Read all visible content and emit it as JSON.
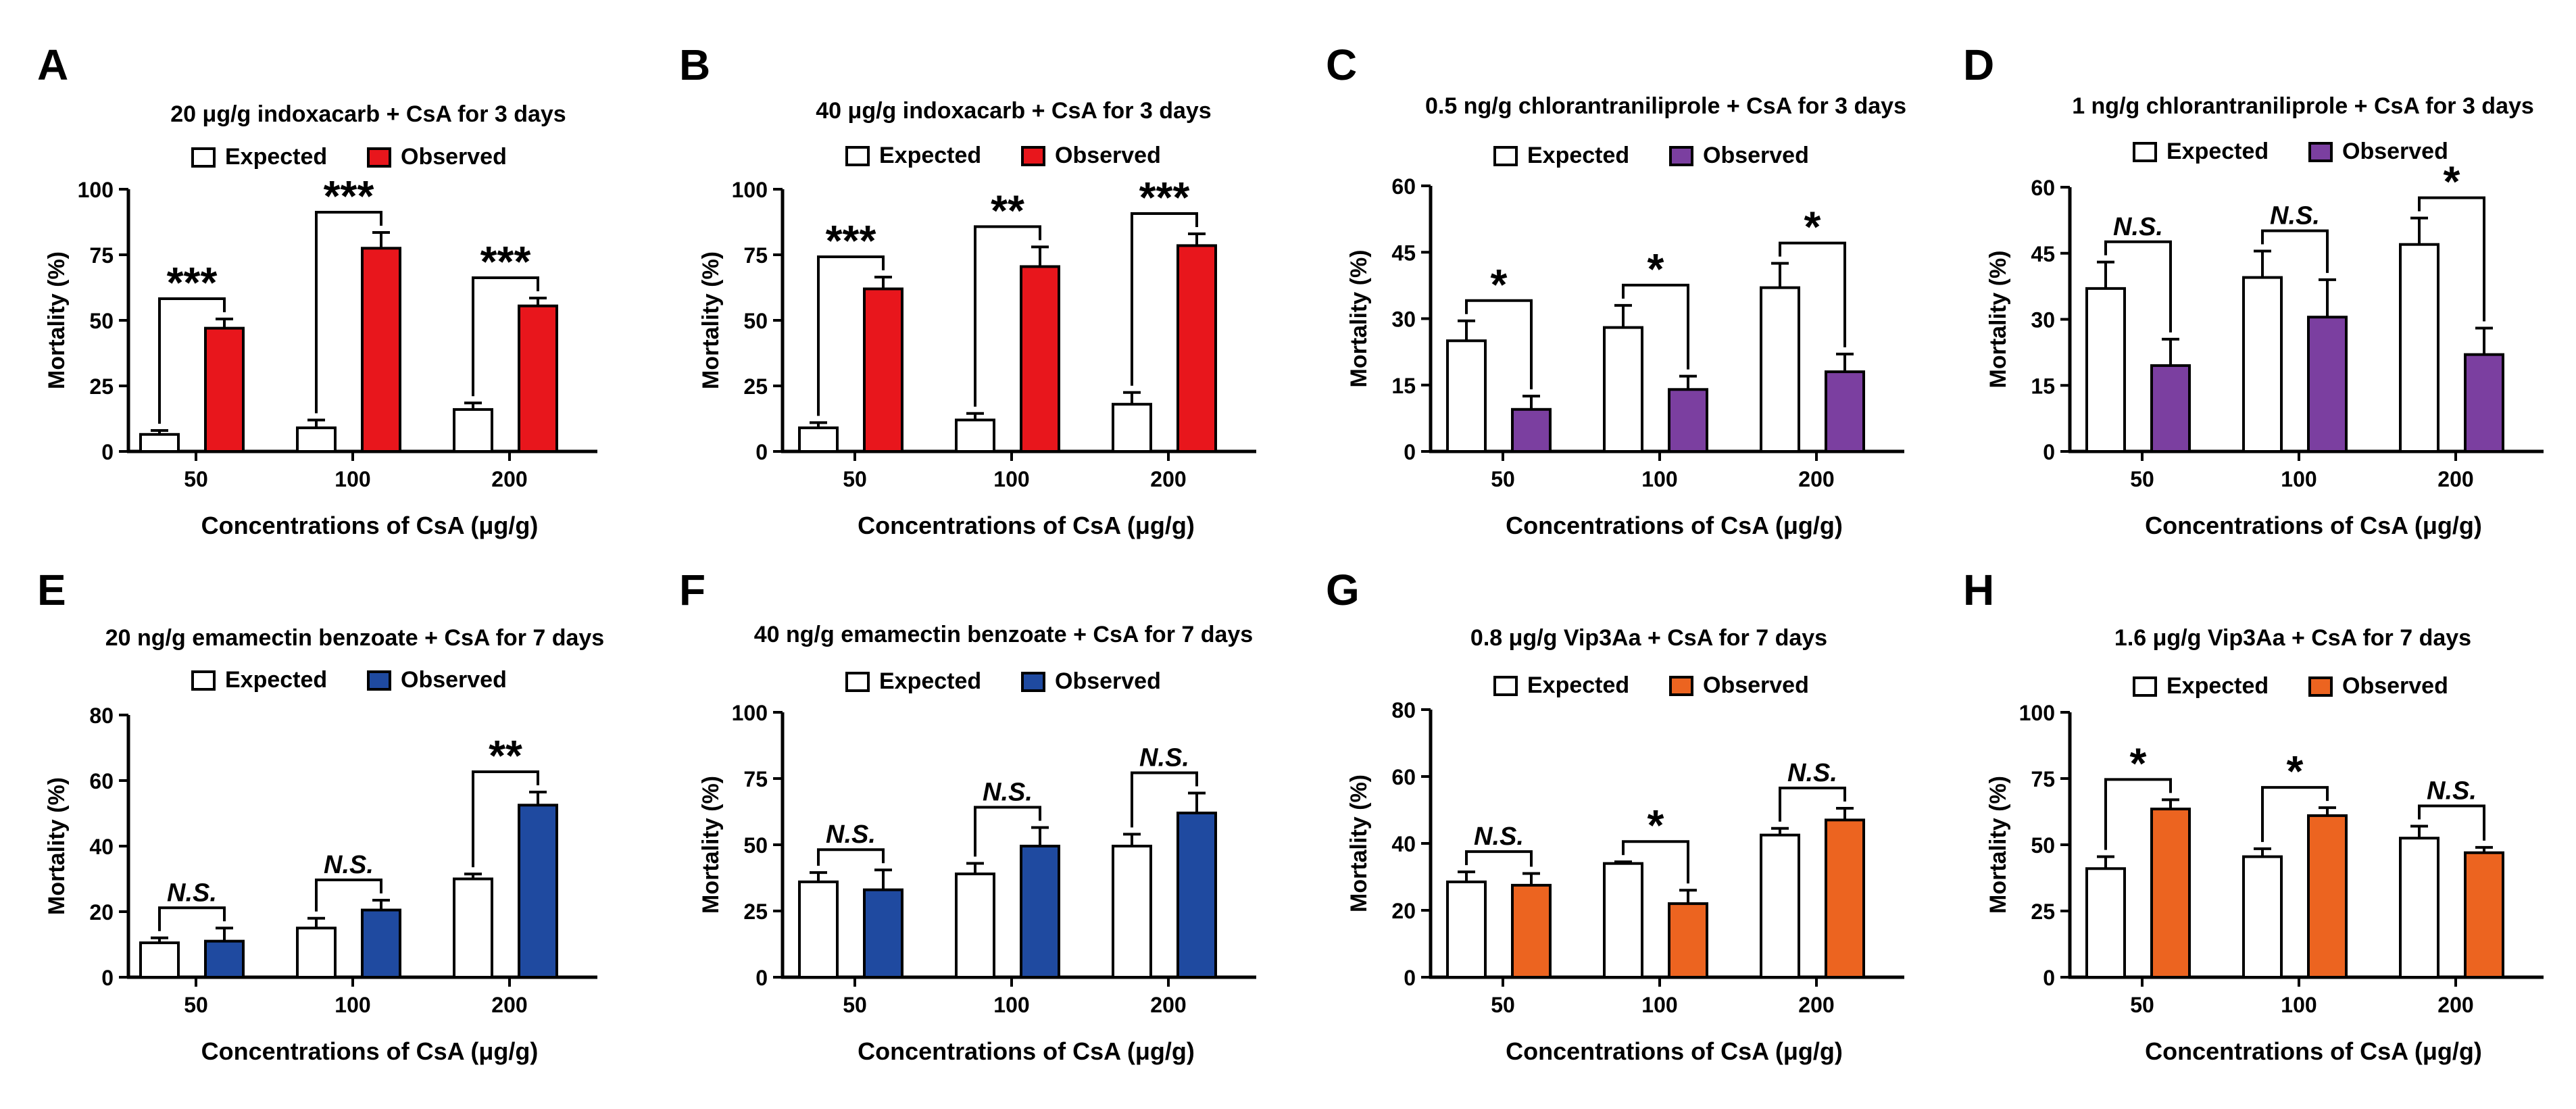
{
  "colors": {
    "expected": "#ffffff",
    "stroke": "#000000",
    "red": "#e8161c",
    "purple": "#7b3fa0",
    "blue": "#1f4aa0",
    "orange": "#ec6420"
  },
  "chart_data": [
    {
      "id": "A",
      "type": "bar",
      "title": "20 μg/g indoxacarb + CsA for 3 days",
      "xlabel": "Concentrations of CsA (μg/g)",
      "ylabel": "Mortality (%)",
      "categories": [
        "50",
        "100",
        "200"
      ],
      "ylim": [
        0,
        100
      ],
      "yticks": [
        "0",
        "25",
        "50",
        "75",
        "100"
      ],
      "observed_color": "red",
      "series": [
        {
          "name": "Expected",
          "values": [
            6.5,
            9,
            16
          ],
          "errors": [
            1.5,
            3,
            2.5
          ]
        },
        {
          "name": "Observed",
          "values": [
            47,
            77.5,
            55.5
          ],
          "errors": [
            3.5,
            6,
            3
          ]
        }
      ],
      "significance": [
        "***",
        "***",
        "***"
      ]
    },
    {
      "id": "B",
      "type": "bar",
      "title": "40 μg/g indoxacarb + CsA for 3 days",
      "xlabel": "Concentrations of CsA (μg/g)",
      "ylabel": "Mortality (%)",
      "categories": [
        "50",
        "100",
        "200"
      ],
      "ylim": [
        0,
        100
      ],
      "yticks": [
        "0",
        "25",
        "50",
        "75",
        "100"
      ],
      "observed_color": "red",
      "series": [
        {
          "name": "Expected",
          "values": [
            9,
            12,
            18
          ],
          "errors": [
            2,
            2.5,
            4.5
          ]
        },
        {
          "name": "Observed",
          "values": [
            62,
            70.5,
            78.5
          ],
          "errors": [
            4.5,
            7.5,
            4.5
          ]
        }
      ],
      "significance": [
        "***",
        "**",
        "***"
      ]
    },
    {
      "id": "C",
      "type": "bar",
      "title": "0.5 ng/g chlorantraniliprole + CsA for 3 days",
      "xlabel": "Concentrations of CsA (μg/g)",
      "ylabel": "Mortality (%)",
      "categories": [
        "50",
        "100",
        "200"
      ],
      "ylim": [
        0,
        60
      ],
      "yticks": [
        "0",
        "15",
        "30",
        "45",
        "60"
      ],
      "observed_color": "purple",
      "series": [
        {
          "name": "Expected",
          "values": [
            25,
            28,
            37
          ],
          "errors": [
            4.5,
            5,
            5.5
          ]
        },
        {
          "name": "Observed",
          "values": [
            9.5,
            14,
            18
          ],
          "errors": [
            3,
            3,
            4
          ]
        }
      ],
      "significance": [
        "*",
        "*",
        "*"
      ]
    },
    {
      "id": "D",
      "type": "bar",
      "title": "1 ng/g chlorantraniliprole + CsA for 3 days",
      "xlabel": "Concentrations of CsA (μg/g)",
      "ylabel": "Mortality (%)",
      "categories": [
        "50",
        "100",
        "200"
      ],
      "ylim": [
        0,
        60
      ],
      "yticks": [
        "0",
        "15",
        "30",
        "45",
        "60"
      ],
      "observed_color": "purple",
      "series": [
        {
          "name": "Expected",
          "values": [
            37,
            39.5,
            47
          ],
          "errors": [
            6,
            6,
            6
          ]
        },
        {
          "name": "Observed",
          "values": [
            19.5,
            30.5,
            22
          ],
          "errors": [
            6,
            8.5,
            6
          ]
        }
      ],
      "significance": [
        "N.S.",
        "N.S.",
        "*"
      ]
    },
    {
      "id": "E",
      "type": "bar",
      "title": "20 ng/g emamectin benzoate + CsA for  7 days",
      "xlabel": "Concentrations of CsA (μg/g)",
      "ylabel": "Mortality (%)",
      "categories": [
        "50",
        "100",
        "200"
      ],
      "ylim": [
        0,
        80
      ],
      "yticks": [
        "0",
        "20",
        "40",
        "60",
        "80"
      ],
      "observed_color": "blue",
      "series": [
        {
          "name": "Expected",
          "values": [
            10.5,
            15,
            30
          ],
          "errors": [
            1.5,
            3,
            1.5
          ]
        },
        {
          "name": "Observed",
          "values": [
            11,
            20.5,
            52.5
          ],
          "errors": [
            4,
            3,
            4
          ]
        }
      ],
      "significance": [
        "N.S.",
        "N.S.",
        "**"
      ]
    },
    {
      "id": "F",
      "type": "bar",
      "title": "40 ng/g emamectin benzoate + CsA for 7 days",
      "xlabel": "Concentrations of CsA (μg/g)",
      "ylabel": "Mortality (%)",
      "categories": [
        "50",
        "100",
        "200"
      ],
      "ylim": [
        0,
        100
      ],
      "yticks": [
        "0",
        "25",
        "50",
        "75",
        "100"
      ],
      "observed_color": "blue",
      "series": [
        {
          "name": "Expected",
          "values": [
            36,
            39,
            49.5
          ],
          "errors": [
            3.5,
            4,
            4.5
          ]
        },
        {
          "name": "Observed",
          "values": [
            33,
            49.5,
            62
          ],
          "errors": [
            7.5,
            7,
            7.5
          ]
        }
      ],
      "significance": [
        "N.S.",
        "N.S.",
        "N.S."
      ]
    },
    {
      "id": "G",
      "type": "bar",
      "title": "0.8 μg/g Vip3Aa + CsA for 7 days",
      "xlabel": "Concentrations of CsA (μg/g)",
      "ylabel": "Mortality (%)",
      "categories": [
        "50",
        "100",
        "200"
      ],
      "ylim": [
        0,
        80
      ],
      "yticks": [
        "0",
        "20",
        "40",
        "60",
        "80"
      ],
      "observed_color": "orange",
      "series": [
        {
          "name": "Expected",
          "values": [
            28.5,
            34,
            42.5
          ],
          "errors": [
            3,
            0.5,
            2
          ]
        },
        {
          "name": "Observed",
          "values": [
            27.5,
            22,
            47
          ],
          "errors": [
            3.5,
            4,
            3.5
          ]
        }
      ],
      "significance": [
        "N.S.",
        "*",
        "N.S."
      ]
    },
    {
      "id": "H",
      "type": "bar",
      "title": "1.6 μg/g Vip3Aa + CsA for 7 days",
      "xlabel": "Concentrations of CsA (μg/g)",
      "ylabel": "Mortality (%)",
      "categories": [
        "50",
        "100",
        "200"
      ],
      "ylim": [
        0,
        100
      ],
      "yticks": [
        "0",
        "25",
        "50",
        "75",
        "100"
      ],
      "observed_color": "orange",
      "series": [
        {
          "name": "Expected",
          "values": [
            41,
            45.5,
            52.5
          ],
          "errors": [
            4.5,
            3,
            4.5
          ]
        },
        {
          "name": "Observed",
          "values": [
            63.5,
            61,
            47
          ],
          "errors": [
            3.5,
            3,
            2
          ]
        }
      ],
      "significance": [
        "*",
        "*",
        "N.S."
      ]
    }
  ]
}
